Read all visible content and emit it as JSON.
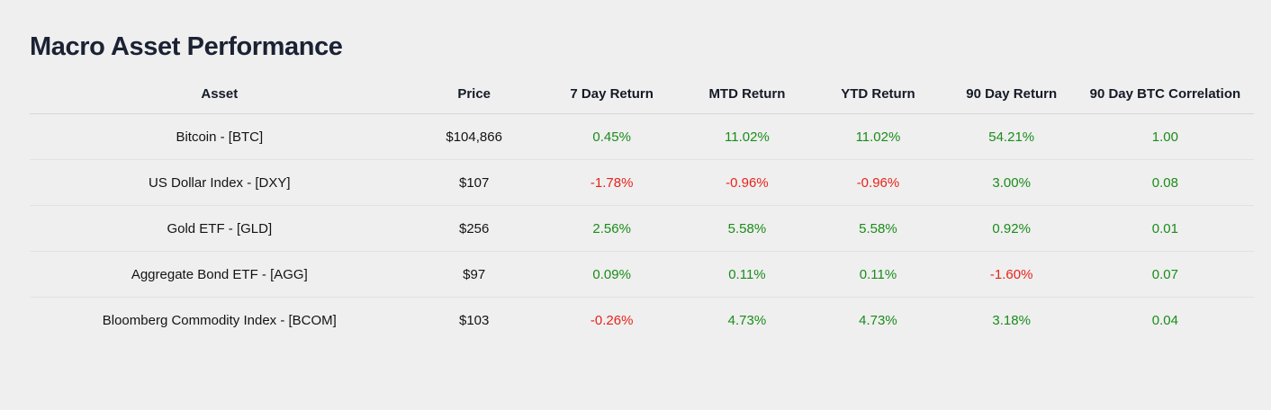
{
  "page": {
    "title": "Macro Asset Performance",
    "background": "#efefef"
  },
  "colors": {
    "title_text": "#1b2233",
    "header_text": "#141a26",
    "cell_text": "#131313",
    "positive": "#1a8c1a",
    "negative": "#e8231a",
    "header_divider": "#d6d6d6",
    "row_divider": "#e2e2e2"
  },
  "chart_data": {
    "type": "table",
    "title": "Macro Asset Performance",
    "columns": [
      "Asset",
      "Price",
      "7 Day Return",
      "MTD Return",
      "YTD Return",
      "90 Day Return",
      "90 Day BTC Correlation"
    ],
    "rows": [
      {
        "cells": [
          {
            "text": "Bitcoin - [BTC]",
            "tone": "neutral"
          },
          {
            "text": "$104,866",
            "tone": "neutral"
          },
          {
            "text": "0.45%",
            "tone": "positive"
          },
          {
            "text": "11.02%",
            "tone": "positive"
          },
          {
            "text": "11.02%",
            "tone": "positive"
          },
          {
            "text": "54.21%",
            "tone": "positive"
          },
          {
            "text": "1.00",
            "tone": "positive"
          }
        ]
      },
      {
        "cells": [
          {
            "text": "US Dollar Index - [DXY]",
            "tone": "neutral"
          },
          {
            "text": "$107",
            "tone": "neutral"
          },
          {
            "text": "-1.78%",
            "tone": "negative"
          },
          {
            "text": "-0.96%",
            "tone": "negative"
          },
          {
            "text": "-0.96%",
            "tone": "negative"
          },
          {
            "text": "3.00%",
            "tone": "positive"
          },
          {
            "text": "0.08",
            "tone": "positive"
          }
        ]
      },
      {
        "cells": [
          {
            "text": "Gold ETF - [GLD]",
            "tone": "neutral"
          },
          {
            "text": "$256",
            "tone": "neutral"
          },
          {
            "text": "2.56%",
            "tone": "positive"
          },
          {
            "text": "5.58%",
            "tone": "positive"
          },
          {
            "text": "5.58%",
            "tone": "positive"
          },
          {
            "text": "0.92%",
            "tone": "positive"
          },
          {
            "text": "0.01",
            "tone": "positive"
          }
        ]
      },
      {
        "cells": [
          {
            "text": "Aggregate Bond ETF - [AGG]",
            "tone": "neutral"
          },
          {
            "text": "$97",
            "tone": "neutral"
          },
          {
            "text": "0.09%",
            "tone": "positive"
          },
          {
            "text": "0.11%",
            "tone": "positive"
          },
          {
            "text": "0.11%",
            "tone": "positive"
          },
          {
            "text": "-1.60%",
            "tone": "negative"
          },
          {
            "text": "0.07",
            "tone": "positive"
          }
        ]
      },
      {
        "cells": [
          {
            "text": "Bloomberg Commodity Index - [BCOM]",
            "tone": "neutral"
          },
          {
            "text": "$103",
            "tone": "neutral"
          },
          {
            "text": "-0.26%",
            "tone": "negative"
          },
          {
            "text": "4.73%",
            "tone": "positive"
          },
          {
            "text": "4.73%",
            "tone": "positive"
          },
          {
            "text": "3.18%",
            "tone": "positive"
          },
          {
            "text": "0.04",
            "tone": "positive"
          }
        ]
      }
    ]
  }
}
